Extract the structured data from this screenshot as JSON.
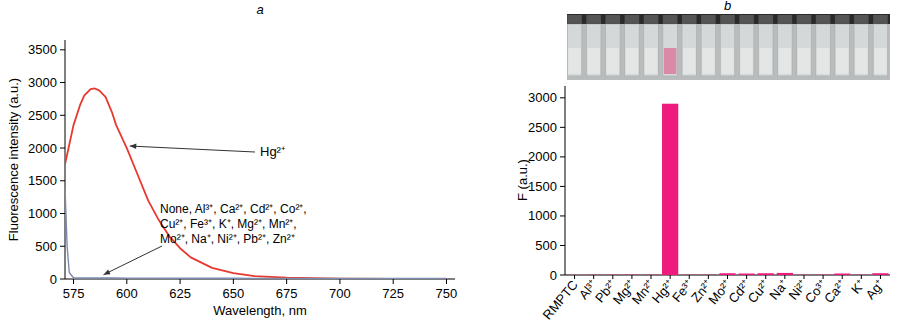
{
  "chart_data": [
    {
      "type": "line",
      "title": "a",
      "x_label": "Wavelength, nm",
      "y_label": "Fluorescence intensity (a.u.)",
      "x": [
        571,
        572,
        573,
        575,
        578,
        580,
        583,
        585,
        587,
        590,
        593,
        595,
        600,
        605,
        610,
        615,
        620,
        625,
        630,
        640,
        650,
        660,
        675,
        700,
        725,
        750
      ],
      "series": [
        {
          "name": "Hg²⁺",
          "color": "#e8392f",
          "values": [
            1750,
            1900,
            2050,
            2350,
            2650,
            2800,
            2900,
            2910,
            2880,
            2780,
            2550,
            2350,
            2000,
            1600,
            1200,
            900,
            650,
            470,
            330,
            170,
            90,
            45,
            20,
            5,
            2,
            0
          ]
        },
        {
          "name": "None, Al³⁺, Ca²⁺, Cd²⁺, Co²⁺, Cu²⁺, Fe³⁺, K⁺, Mg²⁺, Mn²⁺, Mo²⁺, Na⁺, Ni²⁺, Pb²⁺, Zn²⁺",
          "color": "#7d8bb0",
          "values": [
            1400,
            500,
            100,
            20,
            15,
            15,
            15,
            15,
            15,
            15,
            15,
            15,
            14,
            14,
            13,
            13,
            12,
            12,
            12,
            11,
            11,
            10,
            10,
            10,
            10,
            10
          ]
        }
      ],
      "xlim": [
        571,
        754
      ],
      "xticks": [
        575,
        600,
        625,
        650,
        675,
        700,
        725,
        750
      ],
      "ylim": [
        0,
        3650
      ],
      "yticks": [
        0,
        500,
        1000,
        1500,
        2000,
        2500,
        3000,
        3500
      ],
      "grid": false
    },
    {
      "type": "bar",
      "title": "b",
      "y_label": "F (a.u.)",
      "categories": [
        "RMPTC",
        "Al³⁺",
        "Pb²⁺",
        "Mg²⁺",
        "Mn²⁺",
        "Hg²⁺",
        "Fe³⁺",
        "Zn²⁺",
        "Mo²⁺",
        "Cd²⁺",
        "Cu²⁺",
        "Na⁺",
        "Ni²⁺",
        "Co³⁺",
        "Ca²⁺",
        "K⁺",
        "Ag⁺"
      ],
      "values": [
        3,
        5,
        5,
        5,
        5,
        2900,
        5,
        5,
        30,
        25,
        30,
        35,
        5,
        5,
        25,
        5,
        30
      ],
      "color": "#ee1a7d",
      "ylim": [
        0,
        3200
      ],
      "yticks": [
        0,
        500,
        1000,
        1500,
        2000,
        2500,
        3000
      ],
      "grid": false
    }
  ]
}
